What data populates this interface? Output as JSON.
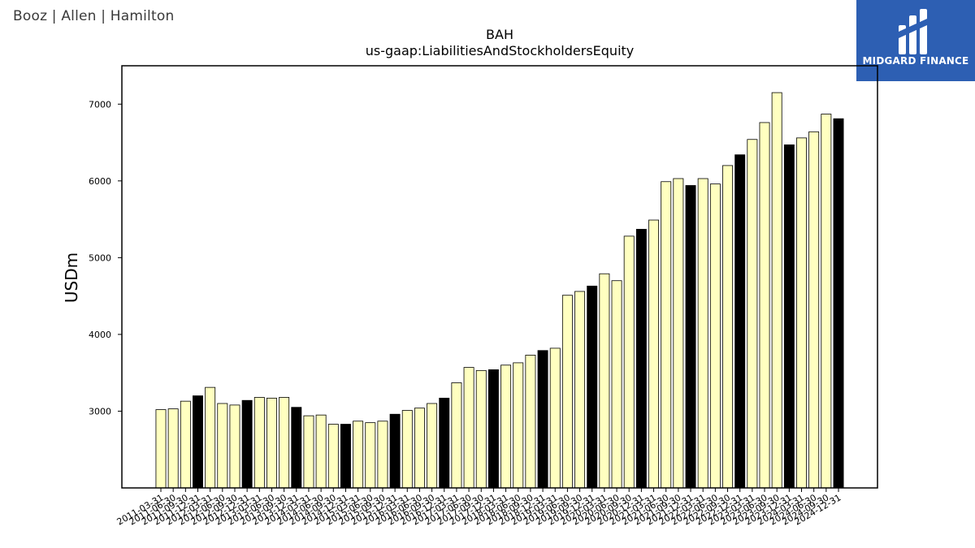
{
  "header": {
    "company_logo_text": "Booz | Allen | Hamilton",
    "brand_name": "MIDGARD FINANCE",
    "brand_color": "#2d5fb3"
  },
  "chart_data": {
    "type": "bar",
    "title": "BAH",
    "subtitle": "us-gaap:LiabilitiesAndStockholdersEquity",
    "xlabel": "",
    "ylabel": "USDm",
    "ylim": [
      2000,
      7500
    ],
    "yticks": [
      3000,
      4000,
      5000,
      6000,
      7000
    ],
    "grid": false,
    "colors": {
      "quarter": "#ffffc0",
      "fiscal_year_end": "#000000",
      "edge": "#000000"
    },
    "categories": [
      "2011-03-31",
      "2011-06-30",
      "2011-09-30",
      "2011-12-31",
      "2012-03-31",
      "2012-06-30",
      "2012-09-30",
      "2012-12-31",
      "2013-03-31",
      "2013-06-30",
      "2013-09-30",
      "2013-12-31",
      "2014-03-31",
      "2014-06-30",
      "2014-09-30",
      "2014-12-31",
      "2015-03-31",
      "2015-06-30",
      "2015-09-30",
      "2015-12-31",
      "2016-03-31",
      "2016-06-30",
      "2016-09-30",
      "2016-12-31",
      "2017-03-31",
      "2017-06-30",
      "2017-09-30",
      "2017-12-31",
      "2018-03-31",
      "2018-06-30",
      "2018-09-30",
      "2018-12-31",
      "2019-03-31",
      "2019-06-30",
      "2019-09-30",
      "2019-12-31",
      "2020-03-31",
      "2020-06-30",
      "2020-09-30",
      "2020-12-31",
      "2021-03-31",
      "2021-06-30",
      "2021-09-30",
      "2021-12-31",
      "2022-03-31",
      "2022-06-30",
      "2022-09-30",
      "2022-12-31",
      "2023-03-31",
      "2023-06-30",
      "2023-09-30",
      "2023-12-31",
      "2024-03-31",
      "2024-06-30",
      "2024-09-30",
      "2024-12-31"
    ],
    "values": [
      3020,
      3030,
      3130,
      3200,
      3310,
      3100,
      3080,
      3140,
      3180,
      3170,
      3180,
      3050,
      2940,
      2950,
      2830,
      2830,
      2870,
      2850,
      2870,
      2960,
      3010,
      3040,
      3100,
      3170,
      3370,
      3570,
      3530,
      3540,
      3600,
      3630,
      3730,
      3790,
      3820,
      4510,
      4560,
      4630,
      4790,
      4700,
      5280,
      5370,
      5490,
      5990,
      6030,
      5940,
      6030,
      5960,
      6200,
      6340,
      6540,
      6760,
      7150,
      6470,
      6560,
      6640,
      6870,
      6810
    ],
    "fiscal_year_end_flags": [
      0,
      0,
      0,
      1,
      0,
      0,
      0,
      1,
      0,
      0,
      0,
      1,
      0,
      0,
      0,
      1,
      0,
      0,
      0,
      1,
      0,
      0,
      0,
      1,
      0,
      0,
      0,
      1,
      0,
      0,
      0,
      1,
      0,
      0,
      0,
      1,
      0,
      0,
      0,
      1,
      0,
      0,
      0,
      1,
      0,
      0,
      0,
      1,
      0,
      0,
      0,
      1,
      0,
      0,
      0,
      1
    ]
  }
}
